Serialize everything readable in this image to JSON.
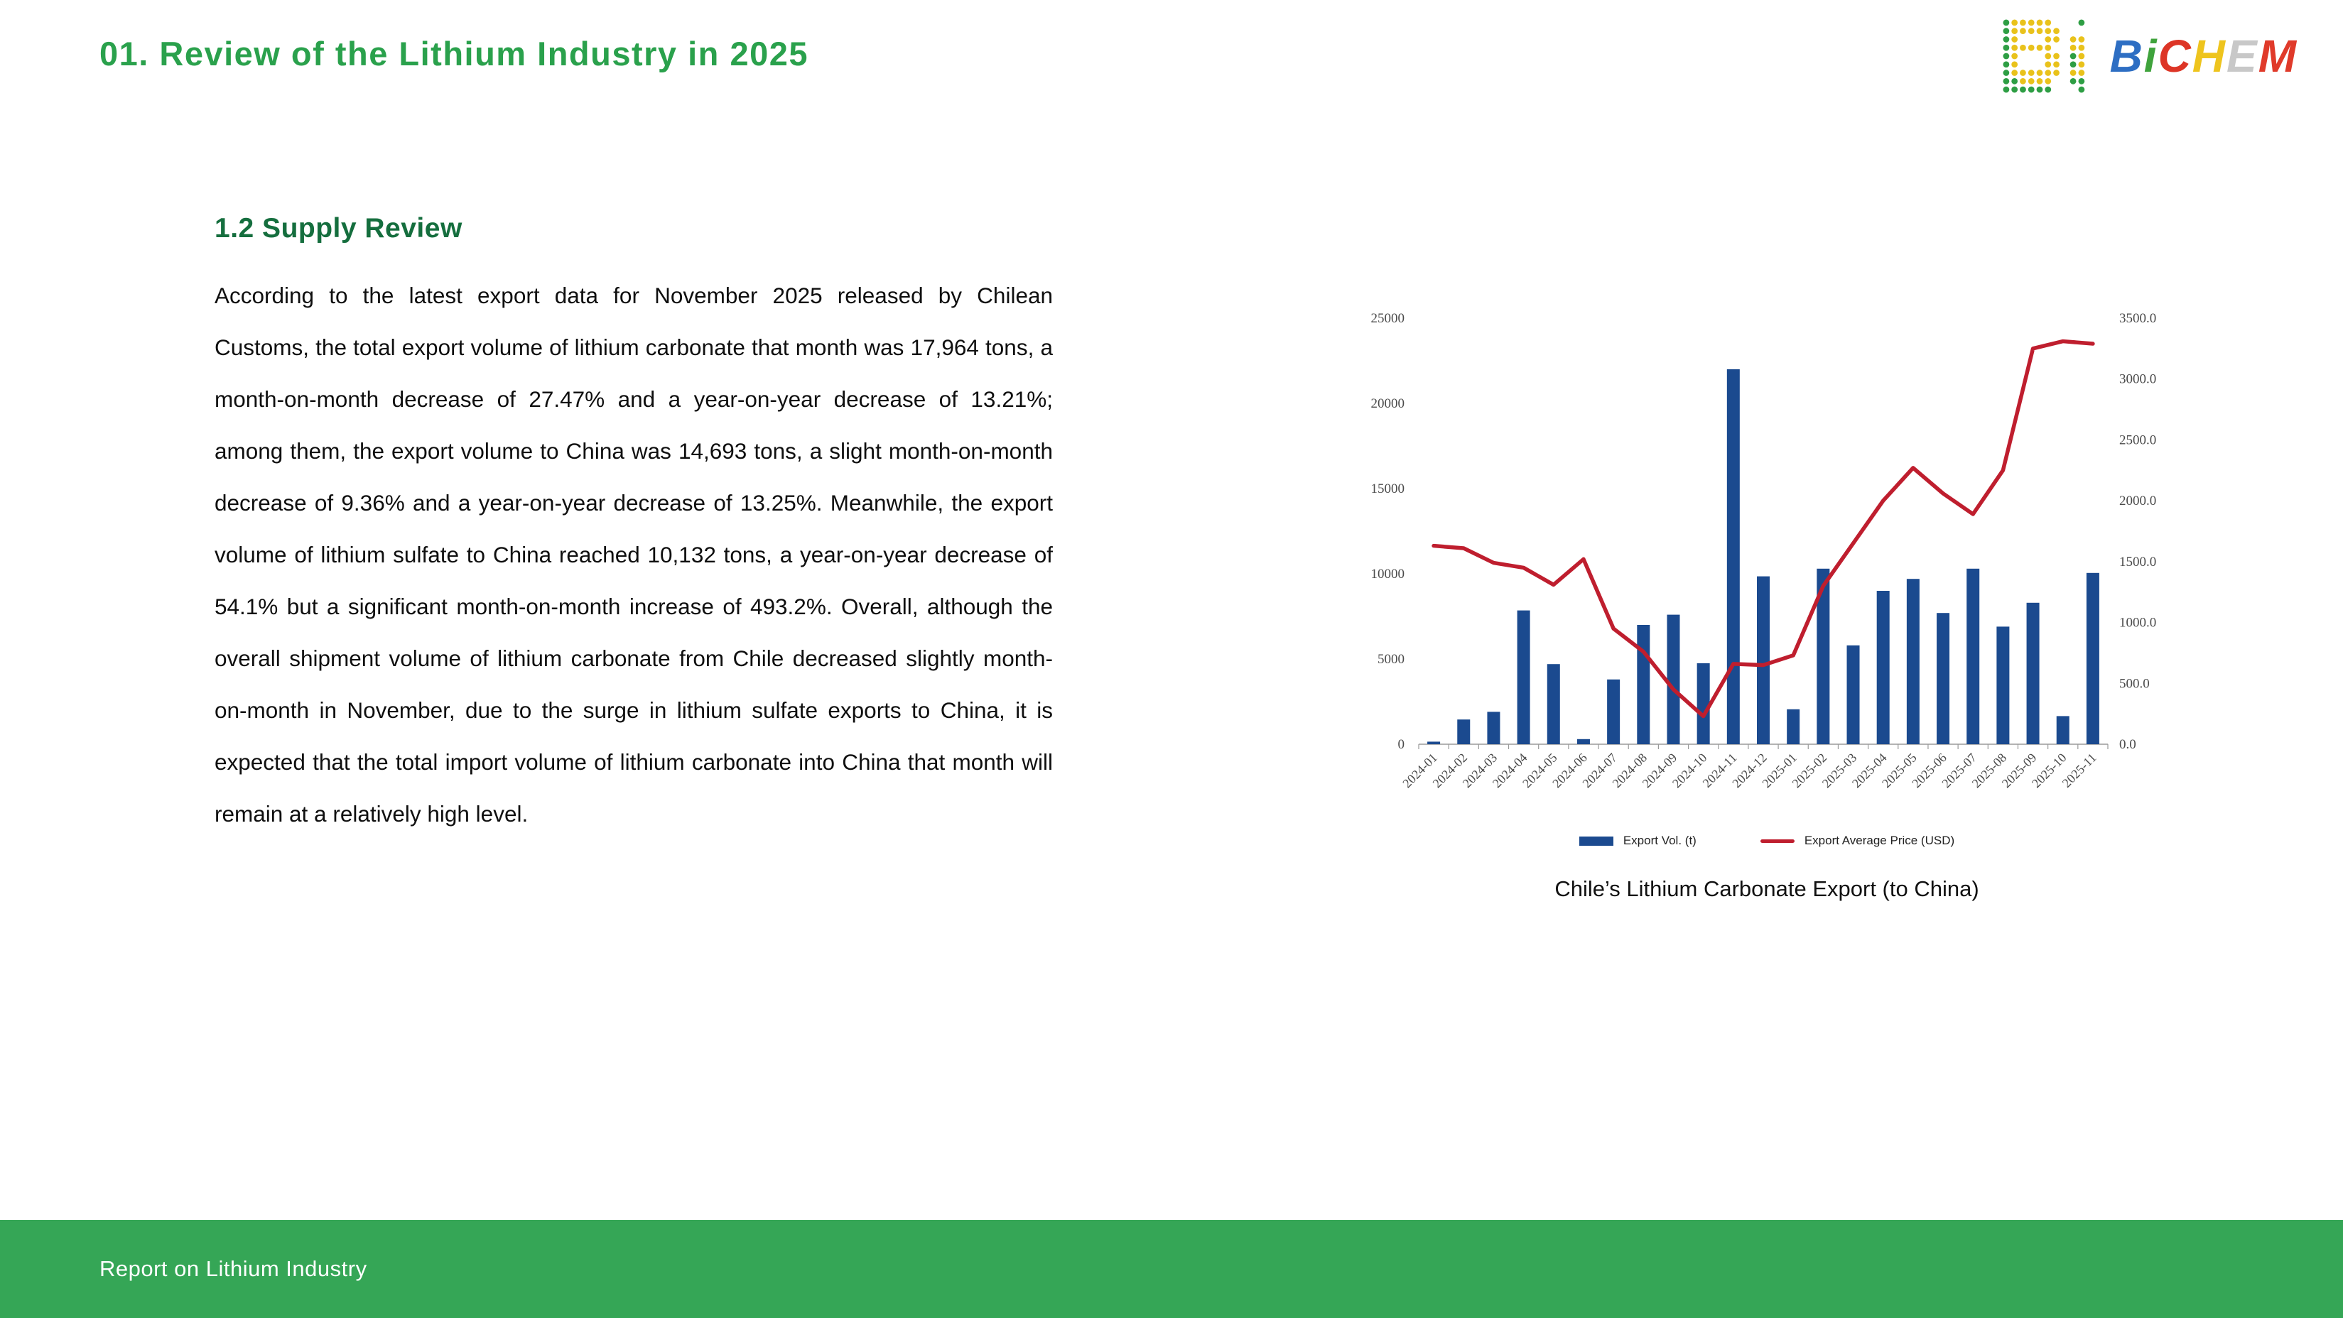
{
  "header": {
    "title": "01. Review of the Lithium Industry in 2025"
  },
  "logo": {
    "name": "BiCHEM",
    "letters": [
      {
        "ch": "B",
        "color": "#2d6ec3"
      },
      {
        "ch": "i",
        "color": "#3fa33c"
      },
      {
        "ch": "C",
        "color": "#dd3526"
      },
      {
        "ch": "H",
        "color": "#eec41d"
      },
      {
        "ch": "E",
        "color": "#c8c8c8"
      },
      {
        "ch": "M",
        "color": "#e03a2a"
      }
    ],
    "dot_colors": {
      "green": "#2e9e44",
      "yellow": "#e9c21b"
    }
  },
  "section": {
    "heading": "1.2 Supply Review",
    "paragraph": "According to the latest export data for November 2025 released by Chilean Customs, the total export volume of lithium carbonate that month was 17,964 tons, a month-on-month decrease of 27.47% and a year-on-year decrease of 13.21%; among them, the export volume to China was 14,693 tons, a slight month-on-month decrease of 9.36% and a year-on-year decrease of 13.25%. Meanwhile, the export volume of lithium sulfate to China reached 10,132 tons, a year-on-year decrease of 54.1% but a significant month-on-month increase of 493.2%. Overall, although the overall shipment volume of lithium carbonate from Chile decreased slightly month-on-month in November, due to the surge in lithium sulfate exports to China, it is expected that the total import volume of lithium carbonate into China that month will remain at a relatively high level."
  },
  "chart_data": {
    "type": "bar",
    "title": "Chile’s Lithium Carbonate Export (to China)",
    "categories": [
      "2024-01",
      "2024-02",
      "2024-03",
      "2024-04",
      "2024-05",
      "2024-06",
      "2024-07",
      "2024-08",
      "2024-09",
      "2024-10",
      "2024-11",
      "2024-12",
      "2025-01",
      "2025-02",
      "2025-03",
      "2025-04",
      "2025-05",
      "2025-06",
      "2025-07",
      "2025-08",
      "2025-09",
      "2025-10",
      "2025-11"
    ],
    "series": [
      {
        "name": "Export Vol. (t)",
        "type": "bar",
        "axis": "left",
        "color": "#1b4a8f",
        "values": [
          150,
          1450,
          1900,
          7850,
          4700,
          300,
          3800,
          7000,
          7600,
          4750,
          22000,
          9850,
          2050,
          10300,
          5800,
          9000,
          9700,
          7700,
          10300,
          6900,
          8300,
          1650,
          10050
        ]
      },
      {
        "name": "Export Average Price (USD)",
        "type": "line",
        "axis": "right",
        "color": "#bf1e2e",
        "values": [
          1630,
          1610,
          1490,
          1450,
          1310,
          1520,
          950,
          760,
          450,
          230,
          660,
          650,
          730,
          1300,
          1650,
          2000,
          2270,
          2060,
          1890,
          2250,
          3250,
          3310,
          3290
        ]
      }
    ],
    "left_axis": {
      "min": 0,
      "max": 25000,
      "ticks": [
        0,
        5000,
        10000,
        15000,
        20000,
        25000
      ]
    },
    "right_axis": {
      "min": 0,
      "max": 3500,
      "ticks": [
        "0.0",
        "500.0",
        "1000.0",
        "1500.0",
        "2000.0",
        "2500.0",
        "3000.0",
        "3500.0"
      ]
    },
    "xlabel": "",
    "ylabel": "",
    "grid": false,
    "legend_position": "bottom"
  },
  "footer": {
    "text": "Report on Lithium Industry"
  },
  "colors": {
    "title_green": "#2aa14c",
    "heading_green": "#156e3e",
    "footer_green": "#35a656",
    "bar_blue": "#1b4a8f",
    "line_red": "#bf1e2e"
  }
}
